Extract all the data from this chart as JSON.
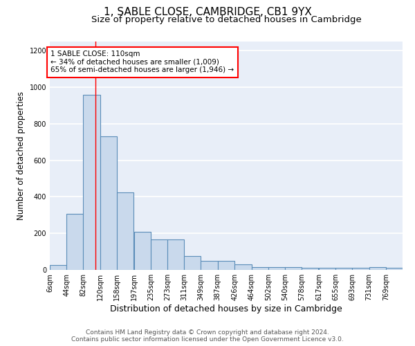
{
  "title": "1, SABLE CLOSE, CAMBRIDGE, CB1 9YX",
  "subtitle": "Size of property relative to detached houses in Cambridge",
  "xlabel": "Distribution of detached houses by size in Cambridge",
  "ylabel": "Number of detached properties",
  "bar_color": "#c9d9ec",
  "bar_edgecolor": "#5b8db8",
  "bar_linewidth": 0.8,
  "background_color": "#e8eef8",
  "grid_color": "#ffffff",
  "annotation_text": "1 SABLE CLOSE: 110sqm\n← 34% of detached houses are smaller (1,009)\n65% of semi-detached houses are larger (1,946) →",
  "annotation_box_color": "white",
  "annotation_box_edgecolor": "red",
  "vline_x": 110,
  "vline_color": "red",
  "vline_linewidth": 1.0,
  "footer_line1": "Contains HM Land Registry data © Crown copyright and database right 2024.",
  "footer_line2": "Contains public sector information licensed under the Open Government Licence v3.0.",
  "categories": [
    "6sqm",
    "44sqm",
    "82sqm",
    "120sqm",
    "158sqm",
    "197sqm",
    "235sqm",
    "273sqm",
    "311sqm",
    "349sqm",
    "387sqm",
    "426sqm",
    "464sqm",
    "502sqm",
    "540sqm",
    "578sqm",
    "617sqm",
    "655sqm",
    "693sqm",
    "731sqm",
    "769sqm"
  ],
  "bin_edges": [
    6,
    44,
    82,
    120,
    158,
    197,
    235,
    273,
    311,
    349,
    387,
    426,
    464,
    502,
    540,
    578,
    617,
    655,
    693,
    731,
    769
  ],
  "bin_width": 38,
  "values": [
    25,
    305,
    960,
    730,
    425,
    210,
    165,
    165,
    75,
    50,
    50,
    30,
    15,
    15,
    15,
    12,
    12,
    12,
    12,
    14,
    12
  ],
  "ylim": [
    0,
    1250
  ],
  "yticks": [
    0,
    200,
    400,
    600,
    800,
    1000,
    1200
  ],
  "title_fontsize": 11,
  "subtitle_fontsize": 9.5,
  "xlabel_fontsize": 9,
  "ylabel_fontsize": 8.5,
  "tick_fontsize": 7,
  "footer_fontsize": 6.5,
  "annot_fontsize": 7.5
}
